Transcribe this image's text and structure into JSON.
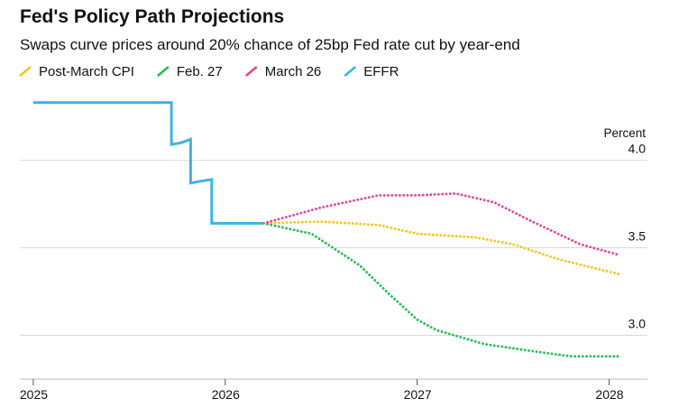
{
  "chart_data": {
    "type": "line",
    "title": "Fed's Policy Path Projections",
    "subtitle": "Swaps curve prices around 20% chance of 25bp Fed rate cut by year-end",
    "y_axis_label": "Percent",
    "xlim": [
      2024.93,
      2028.2
    ],
    "xticks": [
      2025,
      2026,
      2027,
      2028
    ],
    "ylim": [
      2.75,
      4.4
    ],
    "yticks": [
      {
        "value": 3,
        "label": "3.0"
      },
      3.5,
      {
        "value": 4,
        "label": "4.0"
      }
    ],
    "grid": true,
    "series": [
      {
        "name": "Post-March CPI",
        "color": "#f5c518",
        "style": "dotted",
        "x": [
          2026.2,
          2026.5,
          2026.8,
          2027.0,
          2027.3,
          2027.5,
          2027.75,
          2028.05
        ],
        "values": [
          3.64,
          3.65,
          3.63,
          3.58,
          3.56,
          3.52,
          3.43,
          3.35
        ]
      },
      {
        "name": "Feb. 27",
        "color": "#1fbf4f",
        "style": "dotted",
        "x": [
          2026.2,
          2026.45,
          2026.7,
          2026.85,
          2027.0,
          2027.1,
          2027.35,
          2027.6,
          2027.8,
          2028.05
        ],
        "values": [
          3.64,
          3.58,
          3.4,
          3.24,
          3.09,
          3.03,
          2.95,
          2.91,
          2.88,
          2.88
        ]
      },
      {
        "name": "March 26",
        "color": "#e8409a",
        "style": "dotted",
        "x": [
          2026.2,
          2026.5,
          2026.8,
          2027.0,
          2027.2,
          2027.4,
          2027.6,
          2027.85,
          2028.05
        ],
        "values": [
          3.64,
          3.73,
          3.8,
          3.8,
          3.81,
          3.76,
          3.65,
          3.52,
          3.46
        ]
      },
      {
        "name": "EFFR",
        "color": "#3cb4e6",
        "style": "solid",
        "x": [
          2025.0,
          2025.72,
          2025.72,
          2025.77,
          2025.82,
          2025.82,
          2025.87,
          2025.93,
          2025.93,
          2026.2
        ],
        "values": [
          4.33,
          4.33,
          4.09,
          4.1,
          4.12,
          3.87,
          3.88,
          3.89,
          3.64,
          3.64
        ]
      }
    ]
  }
}
